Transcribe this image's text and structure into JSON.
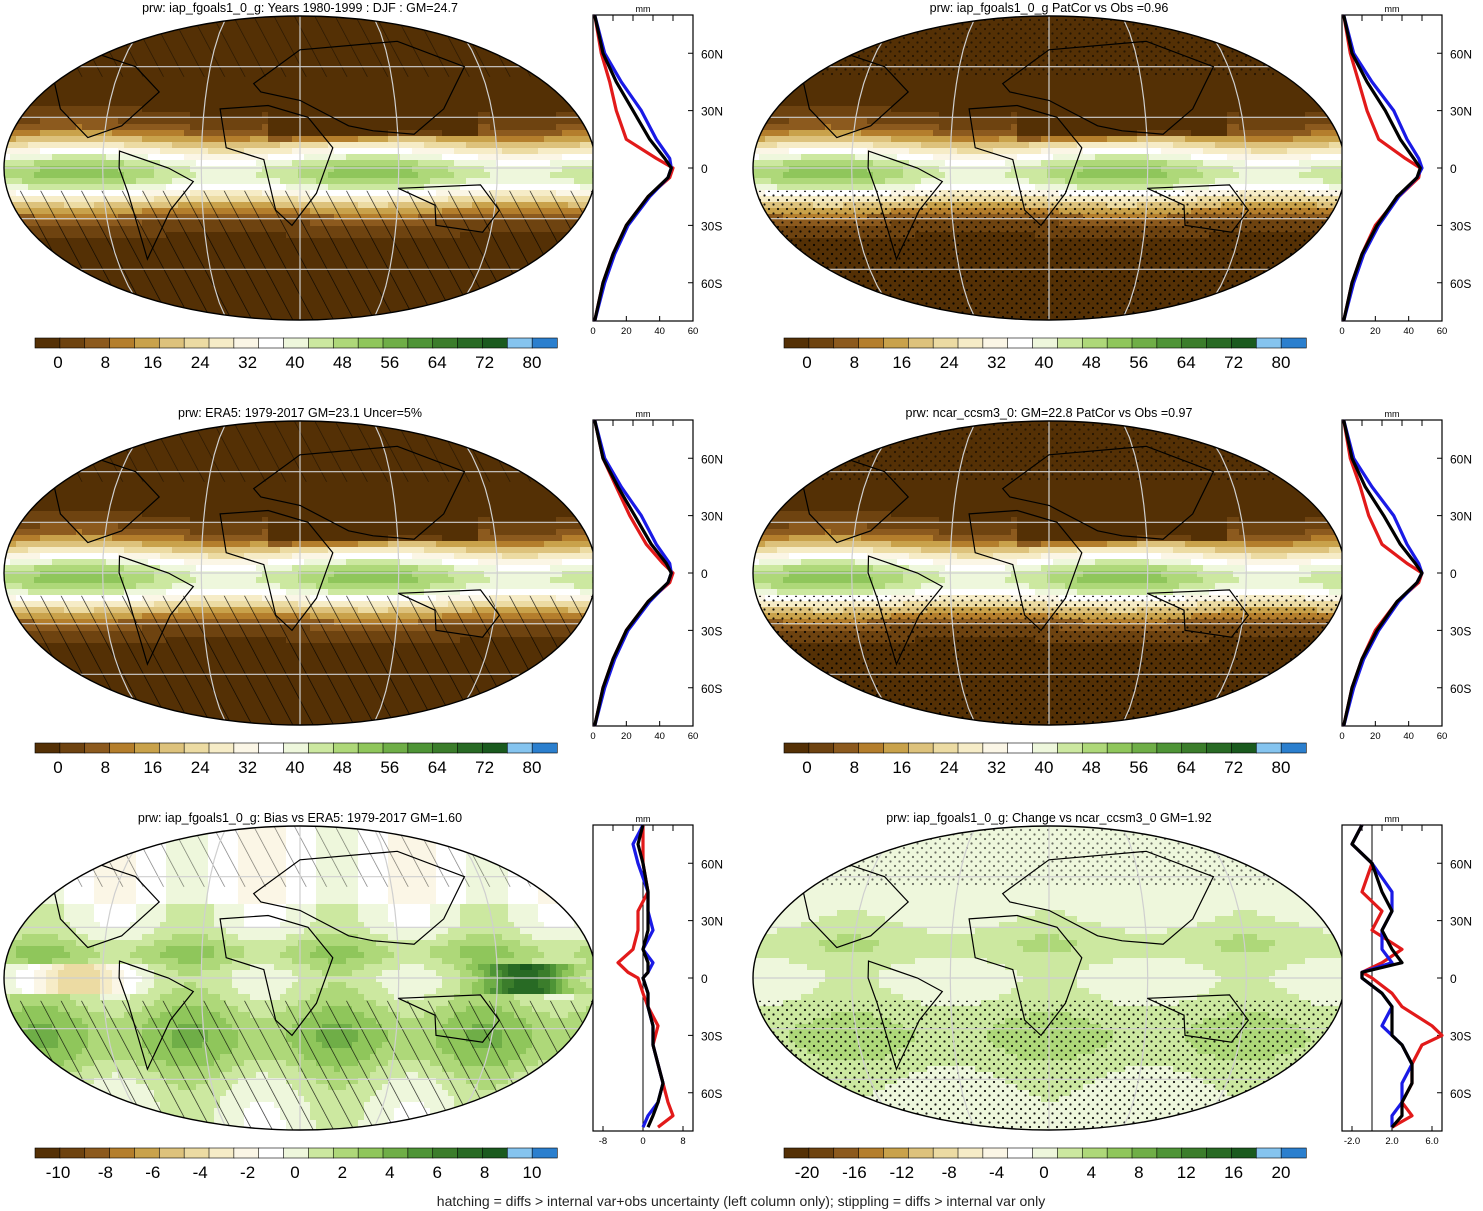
{
  "footer": "hatching = diffs > internal var+obs uncertainty (left column only); stippling = diffs > internal var only",
  "colors": {
    "model": "#e21a1a",
    "obs": "#1a1ae6",
    "mean": "#000000",
    "grid": "#cfcfcf",
    "coast": "#000000"
  },
  "chart_data": [
    {
      "type": "heatmap",
      "title": "prw: iap_fgoals1_0_g: Years 1980-1999 : DJF : GM=24.7",
      "map_kind": "abs",
      "pattern": "hatch",
      "colorbar": {
        "ticks": [
          "0",
          "8",
          "16",
          "24",
          "32",
          "40",
          "48",
          "56",
          "64",
          "72",
          "80"
        ],
        "range": [
          -4,
          84
        ]
      },
      "profile": {
        "unit": "mm",
        "xlim": [
          0,
          60
        ],
        "xticks": [
          "0",
          "20",
          "40",
          "60"
        ],
        "lat_ticks": [
          "60N",
          "30N",
          "0",
          "30S",
          "60S"
        ],
        "series": [
          {
            "color": "model",
            "lat": [
              80,
              60,
              45,
              30,
              15,
              5,
              0,
              -5,
              -15,
              -30,
              -45,
              -60,
              -80
            ],
            "values": [
              1,
              5,
              10,
              14,
              20,
              38,
              48,
              46,
              33,
              20,
              12,
              6,
              1
            ]
          },
          {
            "color": "obs",
            "lat": [
              80,
              60,
              45,
              30,
              15,
              5,
              0,
              -5,
              -15,
              -30,
              -45,
              -60,
              -80
            ],
            "values": [
              1,
              7,
              17,
              29,
              38,
              46,
              47,
              45,
              34,
              21,
              13,
              7,
              1
            ]
          },
          {
            "color": "mean",
            "lat": [
              80,
              60,
              45,
              30,
              15,
              5,
              0,
              -5,
              -15,
              -30,
              -45,
              -60,
              -80
            ],
            "values": [
              1,
              6,
              14,
              24,
              34,
              43,
              47,
              45,
              33,
              20,
              12,
              6,
              1
            ]
          }
        ]
      }
    },
    {
      "type": "heatmap",
      "title": "prw: iap_fgoals1_0_g PatCor vs Obs =0.96",
      "map_kind": "abs",
      "pattern": "stipple",
      "colorbar": {
        "ticks": [
          "0",
          "8",
          "16",
          "24",
          "32",
          "40",
          "48",
          "56",
          "64",
          "72",
          "80"
        ],
        "range": [
          -4,
          84
        ]
      },
      "profile": {
        "unit": "mm",
        "xlim": [
          0,
          60
        ],
        "xticks": [
          "0",
          "20",
          "40",
          "60"
        ],
        "lat_ticks": [
          "60N",
          "30N",
          "0",
          "30S",
          "60S"
        ],
        "series": [
          {
            "color": "model",
            "lat": [
              80,
              60,
              45,
              30,
              15,
              5,
              0,
              -5,
              -15,
              -30,
              -45,
              -60,
              -80
            ],
            "values": [
              1,
              5,
              10,
              15,
              22,
              38,
              47,
              46,
              34,
              20,
              12,
              6,
              1
            ]
          },
          {
            "color": "obs",
            "lat": [
              80,
              60,
              45,
              30,
              15,
              5,
              0,
              -5,
              -15,
              -30,
              -45,
              -60,
              -80
            ],
            "values": [
              1,
              7,
              18,
              31,
              39,
              46,
              48,
              45,
              34,
              22,
              13,
              7,
              1
            ]
          },
          {
            "color": "mean",
            "lat": [
              80,
              60,
              45,
              30,
              15,
              5,
              0,
              -5,
              -15,
              -30,
              -45,
              -60,
              -80
            ],
            "values": [
              1,
              6,
              15,
              26,
              35,
              43,
              47,
              45,
              33,
              21,
              12,
              6,
              1
            ]
          }
        ]
      }
    },
    {
      "type": "heatmap",
      "title": "prw: ERA5: 1979-2017 GM=23.1 Uncer=5%",
      "map_kind": "abs",
      "pattern": "hatch",
      "colorbar": {
        "ticks": [
          "0",
          "8",
          "16",
          "24",
          "32",
          "40",
          "48",
          "56",
          "64",
          "72",
          "80"
        ],
        "range": [
          -4,
          84
        ]
      },
      "profile": {
        "unit": "mm",
        "xlim": [
          0,
          60
        ],
        "xticks": [
          "0",
          "20",
          "40",
          "60"
        ],
        "lat_ticks": [
          "60N",
          "30N",
          "0",
          "30S",
          "60S"
        ],
        "series": [
          {
            "color": "model",
            "lat": [
              80,
              60,
              45,
              30,
              15,
              5,
              0,
              -5,
              -15,
              -30,
              -45,
              -60,
              -80
            ],
            "values": [
              1,
              6,
              14,
              22,
              32,
              42,
              48,
              46,
              33,
              20,
              12,
              6,
              1
            ]
          },
          {
            "color": "obs",
            "lat": [
              80,
              60,
              45,
              30,
              15,
              5,
              0,
              -5,
              -15,
              -30,
              -45,
              -60,
              -80
            ],
            "values": [
              1,
              7,
              17,
              29,
              38,
              46,
              47,
              45,
              34,
              21,
              13,
              7,
              1
            ]
          },
          {
            "color": "mean",
            "lat": [
              80,
              60,
              45,
              30,
              15,
              5,
              0,
              -5,
              -15,
              -30,
              -45,
              -60,
              -80
            ],
            "values": [
              1,
              6,
              15,
              25,
              35,
              44,
              47,
              45,
              33,
              20,
              12,
              6,
              1
            ]
          }
        ]
      }
    },
    {
      "type": "heatmap",
      "title": "prw: ncar_ccsm3_0: GM=22.8 PatCor vs Obs =0.97",
      "map_kind": "abs",
      "pattern": "stipple",
      "colorbar": {
        "ticks": [
          "0",
          "8",
          "16",
          "24",
          "32",
          "40",
          "48",
          "56",
          "64",
          "72",
          "80"
        ],
        "range": [
          -4,
          84
        ]
      },
      "profile": {
        "unit": "mm",
        "xlim": [
          0,
          60
        ],
        "xticks": [
          "0",
          "20",
          "40",
          "60"
        ],
        "lat_ticks": [
          "60N",
          "30N",
          "0",
          "30S",
          "60S"
        ],
        "series": [
          {
            "color": "model",
            "lat": [
              80,
              60,
              45,
              30,
              15,
              5,
              0,
              -5,
              -15,
              -30,
              -45,
              -60,
              -80
            ],
            "values": [
              1,
              5,
              11,
              16,
              24,
              39,
              48,
              46,
              33,
              20,
              12,
              6,
              1
            ]
          },
          {
            "color": "obs",
            "lat": [
              80,
              60,
              45,
              30,
              15,
              5,
              0,
              -5,
              -15,
              -30,
              -45,
              -60,
              -80
            ],
            "values": [
              1,
              7,
              18,
              31,
              39,
              46,
              48,
              45,
              34,
              22,
              13,
              7,
              1
            ]
          },
          {
            "color": "mean",
            "lat": [
              80,
              60,
              45,
              30,
              15,
              5,
              0,
              -5,
              -15,
              -30,
              -45,
              -60,
              -80
            ],
            "values": [
              1,
              6,
              14,
              25,
              35,
              44,
              48,
              45,
              33,
              21,
              12,
              6,
              1
            ]
          }
        ]
      }
    },
    {
      "type": "heatmap",
      "title": "prw: iap_fgoals1_0_g: Bias vs ERA5: 1979-2017 GM=1.60",
      "map_kind": "bias",
      "pattern": "hatch",
      "colorbar": {
        "ticks": [
          "-10",
          "-8",
          "-6",
          "-4",
          "-2",
          "0",
          "2",
          "4",
          "6",
          "8",
          "10"
        ],
        "range": [
          -11,
          11
        ]
      },
      "profile": {
        "unit": "mm",
        "xlim": [
          -10,
          10
        ],
        "xticks": [
          "-8",
          "0",
          "8"
        ],
        "zero_line": true,
        "lat_ticks": [
          "60N",
          "30N",
          "0",
          "30S",
          "60S"
        ],
        "series": [
          {
            "color": "model",
            "lat": [
              80,
              70,
              60,
              45,
              35,
              25,
              15,
              8,
              3,
              0,
              -8,
              -15,
              -25,
              -35,
              -45,
              -55,
              -65,
              -72,
              -78
            ],
            "values": [
              0,
              0,
              0,
              1,
              -1,
              -1,
              -2,
              -5,
              -3,
              -1,
              0,
              1,
              3,
              2,
              3,
              4,
              5,
              6,
              3
            ]
          },
          {
            "color": "obs",
            "lat": [
              80,
              70,
              60,
              45,
              35,
              25,
              15,
              8,
              3,
              0,
              -8,
              -15,
              -25,
              -35,
              -45,
              -55,
              -65,
              -72,
              -78
            ],
            "values": [
              0,
              -2,
              -1,
              1,
              1,
              2,
              0,
              2,
              1,
              0,
              1,
              1,
              2,
              2,
              3,
              4,
              3,
              1,
              0
            ]
          },
          {
            "color": "mean",
            "lat": [
              80,
              70,
              60,
              45,
              35,
              25,
              15,
              8,
              3,
              0,
              -8,
              -15,
              -25,
              -35,
              -45,
              -55,
              -65,
              -72,
              -78
            ],
            "values": [
              0,
              -1,
              0,
              1,
              1,
              1,
              0,
              1,
              1,
              0,
              1,
              1,
              2,
              2,
              3,
              4,
              3,
              2,
              1
            ]
          }
        ]
      }
    },
    {
      "type": "heatmap",
      "title": "prw: iap_fgoals1_0_g: Change vs ncar_ccsm3_0 GM=1.92",
      "map_kind": "change",
      "pattern": "stipple",
      "colorbar": {
        "ticks": [
          "-20",
          "-16",
          "-12",
          "-8",
          "-4",
          "0",
          "4",
          "8",
          "12",
          "16",
          "20"
        ],
        "range": [
          -22,
          22
        ]
      },
      "profile": {
        "unit": "mm",
        "xlim": [
          -3,
          7
        ],
        "xticks": [
          "-2.0",
          "2.0",
          "6.0"
        ],
        "zero_line": true,
        "lat_ticks": [
          "60N",
          "30N",
          "0",
          "30S",
          "60S"
        ],
        "series": [
          {
            "color": "model",
            "lat": [
              80,
              70,
              60,
              45,
              35,
              25,
              15,
              8,
              3,
              0,
              -8,
              -15,
              -25,
              -30,
              -35,
              -45,
              -55,
              -65,
              -72,
              -78
            ],
            "values": [
              -1,
              -2,
              0,
              -1,
              1,
              0,
              3,
              1,
              -1,
              0,
              2,
              3,
              6,
              7,
              5,
              4,
              4,
              3,
              4,
              2
            ]
          },
          {
            "color": "obs",
            "lat": [
              80,
              70,
              60,
              45,
              35,
              25,
              15,
              8,
              3,
              0,
              -8,
              -15,
              -25,
              -30,
              -35,
              -45,
              -55,
              -65,
              -72,
              -78
            ],
            "values": [
              -1,
              -2,
              0,
              2,
              2,
              1,
              1,
              2,
              -1,
              -1,
              1,
              2,
              1,
              2,
              3,
              4,
              3,
              3,
              2,
              2
            ]
          },
          {
            "color": "mean",
            "lat": [
              80,
              70,
              60,
              45,
              35,
              25,
              15,
              8,
              3,
              0,
              -8,
              -15,
              -25,
              -30,
              -35,
              -45,
              -55,
              -65,
              -72,
              -78
            ],
            "values": [
              -1,
              -2,
              0,
              1,
              2,
              1,
              2,
              3,
              -1,
              -1,
              1,
              2,
              2,
              2,
              3,
              4,
              4,
              3,
              3,
              2
            ]
          }
        ]
      }
    }
  ]
}
